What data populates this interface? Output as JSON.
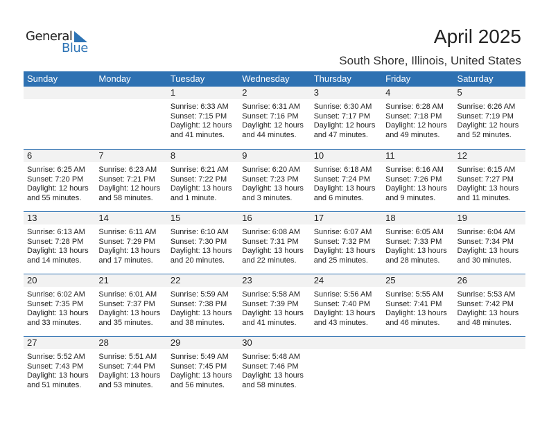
{
  "logo": {
    "line1": "General",
    "line2": "Blue"
  },
  "title": "April 2025",
  "location": "South Shore, Illinois, United States",
  "colors": {
    "accent": "#2e71b2",
    "band": "#f2f2f2"
  },
  "weekdays": [
    "Sunday",
    "Monday",
    "Tuesday",
    "Wednesday",
    "Thursday",
    "Friday",
    "Saturday"
  ],
  "weeks": [
    [
      null,
      null,
      {
        "day": "1",
        "sunrise": "Sunrise: 6:33 AM",
        "sunset": "Sunset: 7:15 PM",
        "daylight1": "Daylight: 12 hours",
        "daylight2": "and 41 minutes."
      },
      {
        "day": "2",
        "sunrise": "Sunrise: 6:31 AM",
        "sunset": "Sunset: 7:16 PM",
        "daylight1": "Daylight: 12 hours",
        "daylight2": "and 44 minutes."
      },
      {
        "day": "3",
        "sunrise": "Sunrise: 6:30 AM",
        "sunset": "Sunset: 7:17 PM",
        "daylight1": "Daylight: 12 hours",
        "daylight2": "and 47 minutes."
      },
      {
        "day": "4",
        "sunrise": "Sunrise: 6:28 AM",
        "sunset": "Sunset: 7:18 PM",
        "daylight1": "Daylight: 12 hours",
        "daylight2": "and 49 minutes."
      },
      {
        "day": "5",
        "sunrise": "Sunrise: 6:26 AM",
        "sunset": "Sunset: 7:19 PM",
        "daylight1": "Daylight: 12 hours",
        "daylight2": "and 52 minutes."
      }
    ],
    [
      {
        "day": "6",
        "sunrise": "Sunrise: 6:25 AM",
        "sunset": "Sunset: 7:20 PM",
        "daylight1": "Daylight: 12 hours",
        "daylight2": "and 55 minutes."
      },
      {
        "day": "7",
        "sunrise": "Sunrise: 6:23 AM",
        "sunset": "Sunset: 7:21 PM",
        "daylight1": "Daylight: 12 hours",
        "daylight2": "and 58 minutes."
      },
      {
        "day": "8",
        "sunrise": "Sunrise: 6:21 AM",
        "sunset": "Sunset: 7:22 PM",
        "daylight1": "Daylight: 13 hours",
        "daylight2": "and 1 minute."
      },
      {
        "day": "9",
        "sunrise": "Sunrise: 6:20 AM",
        "sunset": "Sunset: 7:23 PM",
        "daylight1": "Daylight: 13 hours",
        "daylight2": "and 3 minutes."
      },
      {
        "day": "10",
        "sunrise": "Sunrise: 6:18 AM",
        "sunset": "Sunset: 7:24 PM",
        "daylight1": "Daylight: 13 hours",
        "daylight2": "and 6 minutes."
      },
      {
        "day": "11",
        "sunrise": "Sunrise: 6:16 AM",
        "sunset": "Sunset: 7:26 PM",
        "daylight1": "Daylight: 13 hours",
        "daylight2": "and 9 minutes."
      },
      {
        "day": "12",
        "sunrise": "Sunrise: 6:15 AM",
        "sunset": "Sunset: 7:27 PM",
        "daylight1": "Daylight: 13 hours",
        "daylight2": "and 11 minutes."
      }
    ],
    [
      {
        "day": "13",
        "sunrise": "Sunrise: 6:13 AM",
        "sunset": "Sunset: 7:28 PM",
        "daylight1": "Daylight: 13 hours",
        "daylight2": "and 14 minutes."
      },
      {
        "day": "14",
        "sunrise": "Sunrise: 6:11 AM",
        "sunset": "Sunset: 7:29 PM",
        "daylight1": "Daylight: 13 hours",
        "daylight2": "and 17 minutes."
      },
      {
        "day": "15",
        "sunrise": "Sunrise: 6:10 AM",
        "sunset": "Sunset: 7:30 PM",
        "daylight1": "Daylight: 13 hours",
        "daylight2": "and 20 minutes."
      },
      {
        "day": "16",
        "sunrise": "Sunrise: 6:08 AM",
        "sunset": "Sunset: 7:31 PM",
        "daylight1": "Daylight: 13 hours",
        "daylight2": "and 22 minutes."
      },
      {
        "day": "17",
        "sunrise": "Sunrise: 6:07 AM",
        "sunset": "Sunset: 7:32 PM",
        "daylight1": "Daylight: 13 hours",
        "daylight2": "and 25 minutes."
      },
      {
        "day": "18",
        "sunrise": "Sunrise: 6:05 AM",
        "sunset": "Sunset: 7:33 PM",
        "daylight1": "Daylight: 13 hours",
        "daylight2": "and 28 minutes."
      },
      {
        "day": "19",
        "sunrise": "Sunrise: 6:04 AM",
        "sunset": "Sunset: 7:34 PM",
        "daylight1": "Daylight: 13 hours",
        "daylight2": "and 30 minutes."
      }
    ],
    [
      {
        "day": "20",
        "sunrise": "Sunrise: 6:02 AM",
        "sunset": "Sunset: 7:35 PM",
        "daylight1": "Daylight: 13 hours",
        "daylight2": "and 33 minutes."
      },
      {
        "day": "21",
        "sunrise": "Sunrise: 6:01 AM",
        "sunset": "Sunset: 7:37 PM",
        "daylight1": "Daylight: 13 hours",
        "daylight2": "and 35 minutes."
      },
      {
        "day": "22",
        "sunrise": "Sunrise: 5:59 AM",
        "sunset": "Sunset: 7:38 PM",
        "daylight1": "Daylight: 13 hours",
        "daylight2": "and 38 minutes."
      },
      {
        "day": "23",
        "sunrise": "Sunrise: 5:58 AM",
        "sunset": "Sunset: 7:39 PM",
        "daylight1": "Daylight: 13 hours",
        "daylight2": "and 41 minutes."
      },
      {
        "day": "24",
        "sunrise": "Sunrise: 5:56 AM",
        "sunset": "Sunset: 7:40 PM",
        "daylight1": "Daylight: 13 hours",
        "daylight2": "and 43 minutes."
      },
      {
        "day": "25",
        "sunrise": "Sunrise: 5:55 AM",
        "sunset": "Sunset: 7:41 PM",
        "daylight1": "Daylight: 13 hours",
        "daylight2": "and 46 minutes."
      },
      {
        "day": "26",
        "sunrise": "Sunrise: 5:53 AM",
        "sunset": "Sunset: 7:42 PM",
        "daylight1": "Daylight: 13 hours",
        "daylight2": "and 48 minutes."
      }
    ],
    [
      {
        "day": "27",
        "sunrise": "Sunrise: 5:52 AM",
        "sunset": "Sunset: 7:43 PM",
        "daylight1": "Daylight: 13 hours",
        "daylight2": "and 51 minutes."
      },
      {
        "day": "28",
        "sunrise": "Sunrise: 5:51 AM",
        "sunset": "Sunset: 7:44 PM",
        "daylight1": "Daylight: 13 hours",
        "daylight2": "and 53 minutes."
      },
      {
        "day": "29",
        "sunrise": "Sunrise: 5:49 AM",
        "sunset": "Sunset: 7:45 PM",
        "daylight1": "Daylight: 13 hours",
        "daylight2": "and 56 minutes."
      },
      {
        "day": "30",
        "sunrise": "Sunrise: 5:48 AM",
        "sunset": "Sunset: 7:46 PM",
        "daylight1": "Daylight: 13 hours",
        "daylight2": "and 58 minutes."
      },
      null,
      null,
      null
    ]
  ]
}
